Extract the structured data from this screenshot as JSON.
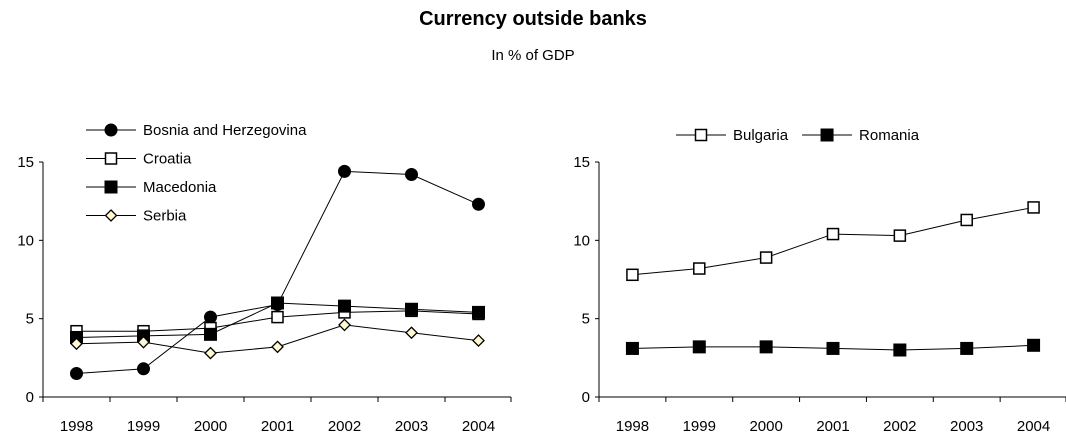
{
  "title": "Currency outside banks",
  "subtitle": "In % of GDP",
  "chart_data": [
    {
      "type": "line",
      "title": "",
      "xlabel": "",
      "ylabel": "",
      "categories": [
        "1998",
        "1999",
        "2000",
        "2001",
        "2002",
        "2003",
        "2004"
      ],
      "ylim": [
        0,
        15
      ],
      "yticks": [
        0,
        5,
        10,
        15
      ],
      "grid": false,
      "legend": "top-left",
      "series": [
        {
          "name": "Bosnia and Herzegovina",
          "marker": "circle-filled",
          "values": [
            1.5,
            1.8,
            5.1,
            5.9,
            14.4,
            14.2,
            12.3
          ]
        },
        {
          "name": "Croatia",
          "marker": "square-open",
          "values": [
            4.2,
            4.2,
            4.4,
            5.1,
            5.4,
            5.5,
            5.3
          ]
        },
        {
          "name": "Macedonia",
          "marker": "square-filled",
          "values": [
            3.8,
            3.9,
            4.0,
            6.0,
            5.8,
            5.6,
            5.4
          ]
        },
        {
          "name": "Serbia",
          "marker": "diamond-open",
          "values": [
            3.4,
            3.5,
            2.8,
            3.2,
            4.6,
            4.1,
            3.6
          ]
        }
      ]
    },
    {
      "type": "line",
      "title": "",
      "xlabel": "",
      "ylabel": "",
      "categories": [
        "1998",
        "1999",
        "2000",
        "2001",
        "2002",
        "2003",
        "2004"
      ],
      "ylim": [
        0,
        15
      ],
      "yticks": [
        0,
        5,
        10,
        15
      ],
      "grid": false,
      "legend": "top",
      "series": [
        {
          "name": "Bulgaria",
          "marker": "square-open",
          "values": [
            7.8,
            8.2,
            8.9,
            10.4,
            10.3,
            11.3,
            12.1
          ]
        },
        {
          "name": "Romania",
          "marker": "square-filled",
          "values": [
            3.1,
            3.2,
            3.2,
            3.1,
            3.0,
            3.1,
            3.3
          ]
        }
      ]
    }
  ]
}
